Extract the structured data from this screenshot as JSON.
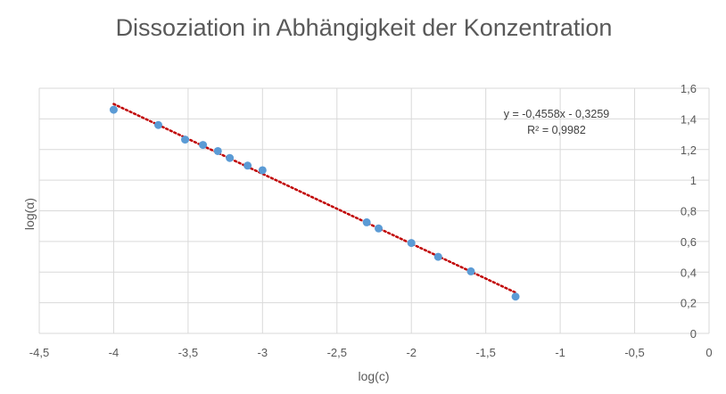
{
  "chart_data": {
    "type": "scatter",
    "title": "Dissoziation in Abhängigkeit der Konzentration",
    "xlabel": "log(c)",
    "ylabel": "log(α)",
    "xlim": [
      -4.5,
      0
    ],
    "ylim": [
      0,
      1.6
    ],
    "x_ticks": [
      {
        "value": -4.5,
        "label": "-4,5"
      },
      {
        "value": -4,
        "label": "-4"
      },
      {
        "value": -3.5,
        "label": "-3,5"
      },
      {
        "value": -3,
        "label": "-3"
      },
      {
        "value": -2.5,
        "label": "-2,5"
      },
      {
        "value": -2,
        "label": "-2"
      },
      {
        "value": -1.5,
        "label": "-1,5"
      },
      {
        "value": -1,
        "label": "-1"
      },
      {
        "value": -0.5,
        "label": "-0,5"
      },
      {
        "value": 0,
        "label": "0"
      }
    ],
    "y_ticks": [
      {
        "value": 0,
        "label": "0"
      },
      {
        "value": 0.2,
        "label": "0,2"
      },
      {
        "value": 0.4,
        "label": "0,4"
      },
      {
        "value": 0.6,
        "label": "0,6"
      },
      {
        "value": 0.8,
        "label": "0,8"
      },
      {
        "value": 1,
        "label": "1"
      },
      {
        "value": 1.2,
        "label": "1,2"
      },
      {
        "value": 1.4,
        "label": "1,4"
      },
      {
        "value": 1.6,
        "label": "1,6"
      }
    ],
    "grid": true,
    "y_axis_side": "right",
    "points": [
      {
        "x": -4.0,
        "y": 1.46
      },
      {
        "x": -3.7,
        "y": 1.36
      },
      {
        "x": -3.52,
        "y": 1.265
      },
      {
        "x": -3.4,
        "y": 1.23
      },
      {
        "x": -3.3,
        "y": 1.19
      },
      {
        "x": -3.22,
        "y": 1.145
      },
      {
        "x": -3.1,
        "y": 1.095
      },
      {
        "x": -3.0,
        "y": 1.065
      },
      {
        "x": -2.3,
        "y": 0.725
      },
      {
        "x": -2.22,
        "y": 0.685
      },
      {
        "x": -2.0,
        "y": 0.59
      },
      {
        "x": -1.82,
        "y": 0.5
      },
      {
        "x": -1.6,
        "y": 0.405
      },
      {
        "x": -1.3,
        "y": 0.24
      }
    ],
    "trendline": {
      "slope": -0.4558,
      "intercept": -0.3259,
      "x_range": [
        -4.0,
        -1.3
      ],
      "equation_label": "y = -0,4558x - 0,3259",
      "r2_label": "R² = 0,9982"
    },
    "colors": {
      "marker": "#5b9bd5",
      "trendline": "#c00000",
      "grid": "#d9d9d9",
      "text": "#595959"
    }
  }
}
